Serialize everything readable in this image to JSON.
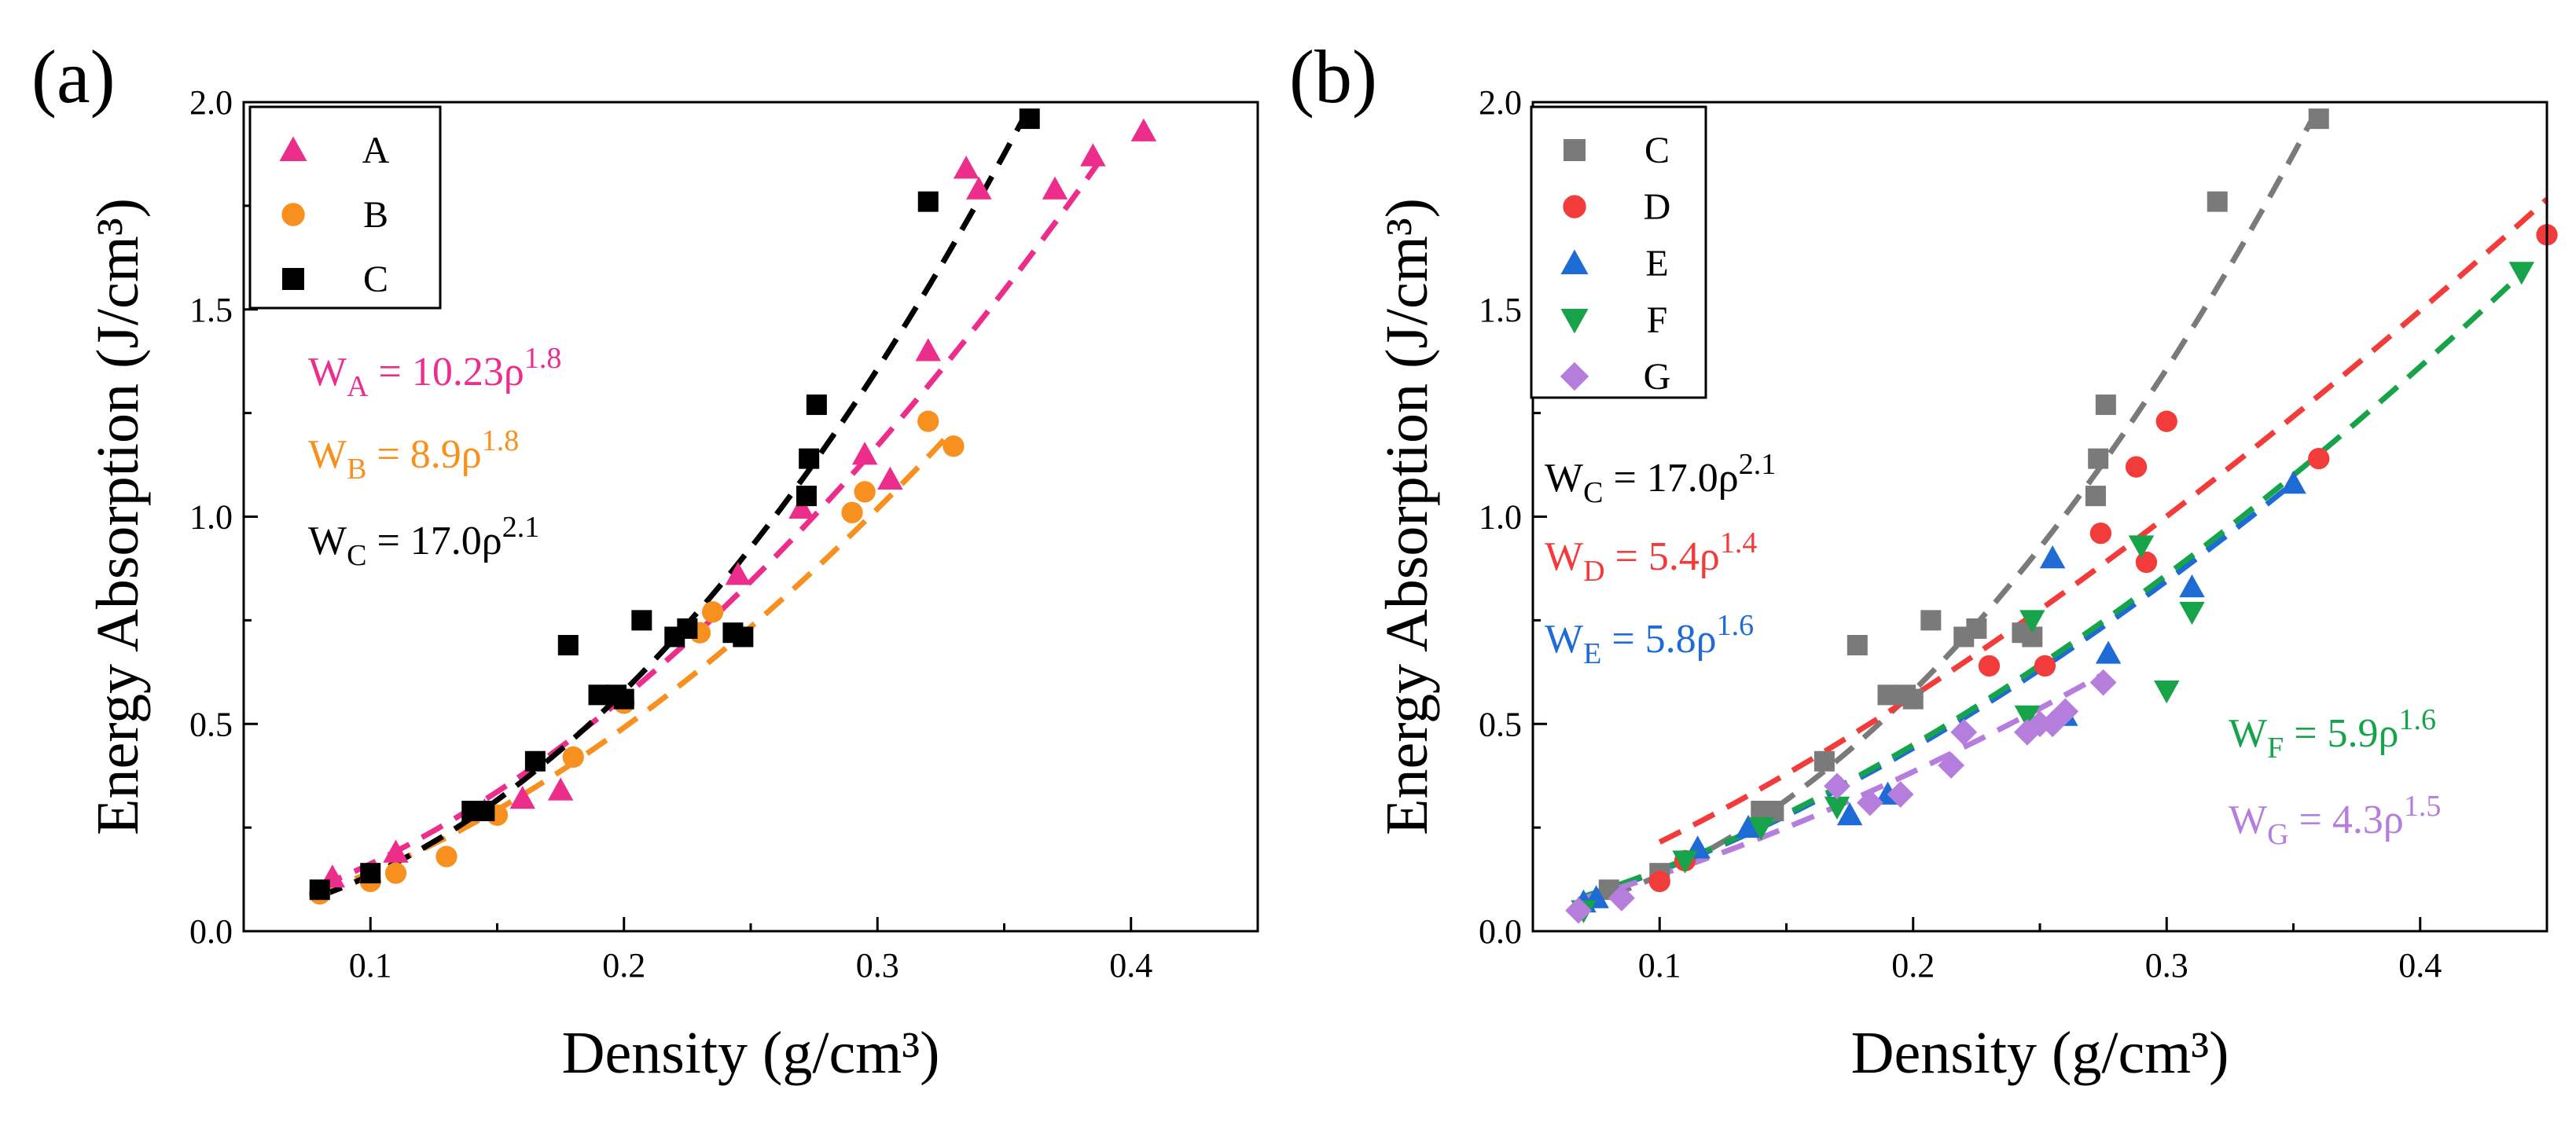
{
  "chart_data": [
    {
      "type": "scatter",
      "panel_label": "(a)",
      "xlabel": "Density (g/cm³)",
      "ylabel": "Energy Absorption (J/cm³)",
      "xlim": [
        0.05,
        0.45
      ],
      "ylim": [
        0.0,
        2.0
      ],
      "xticks": [
        "0.1",
        "0.2",
        "0.3",
        "0.4"
      ],
      "yticks": [
        "0.0",
        "0.5",
        "1.0",
        "1.5",
        "2.0"
      ],
      "legend_position": "top-left",
      "series": [
        {
          "name": "A",
          "marker": "triangle-up",
          "color": "#ec2d8c",
          "x": [
            0.085,
            0.11,
            0.145,
            0.16,
            0.175,
            0.245,
            0.27,
            0.295,
            0.305,
            0.32,
            0.335,
            0.34,
            0.37,
            0.385,
            0.405
          ],
          "y": [
            0.13,
            0.19,
            0.29,
            0.32,
            0.34,
            0.86,
            1.02,
            1.15,
            1.09,
            1.4,
            1.84,
            1.79,
            1.79,
            1.87,
            1.93
          ]
        },
        {
          "name": "B",
          "marker": "circle",
          "color": "#f7901e",
          "x": [
            0.08,
            0.1,
            0.11,
            0.13,
            0.15,
            0.18,
            0.2,
            0.23,
            0.235,
            0.29,
            0.295,
            0.32,
            0.33
          ],
          "y": [
            0.09,
            0.12,
            0.14,
            0.18,
            0.28,
            0.42,
            0.55,
            0.72,
            0.77,
            1.01,
            1.06,
            1.23,
            1.17
          ],
          "exclude_from_legend": false
        },
        {
          "name": "C",
          "marker": "square",
          "color": "#000000",
          "x": [
            0.08,
            0.1,
            0.14,
            0.145,
            0.165,
            0.178,
            0.19,
            0.197,
            0.2,
            0.207,
            0.22,
            0.225,
            0.243,
            0.247,
            0.272,
            0.273,
            0.276,
            0.32,
            0.36
          ],
          "y": [
            0.1,
            0.14,
            0.29,
            0.29,
            0.41,
            0.69,
            0.57,
            0.57,
            0.56,
            0.75,
            0.71,
            0.73,
            0.72,
            0.71,
            1.05,
            1.14,
            1.27,
            1.76,
            1.96
          ]
        }
      ],
      "fits": [
        {
          "name": "A",
          "coef": 10.23,
          "exp": 1.8,
          "x_range": [
            0.08,
            0.39
          ],
          "color": "#ec2d8c"
        },
        {
          "name": "B",
          "coef": 8.9,
          "exp": 1.8,
          "x_range": [
            0.08,
            0.33
          ],
          "color": "#f7901e"
        },
        {
          "name": "C",
          "coef": 17.0,
          "exp": 2.1,
          "x_range": [
            0.08,
            0.36
          ],
          "color": "#000000"
        }
      ],
      "annotations": [
        {
          "prefix": "W",
          "sub": "A",
          "mid": " = 10.23ρ",
          "sup": "1.8",
          "color": "#ec2d8c"
        },
        {
          "prefix": "W",
          "sub": "B",
          "mid": " = 8.9ρ",
          "sup": "1.8",
          "color": "#f7901e"
        },
        {
          "prefix": "W",
          "sub": "C",
          "mid": " = 17.0ρ",
          "sup": "2.1",
          "color": "#000000"
        }
      ]
    },
    {
      "type": "scatter",
      "panel_label": "(b)",
      "xlabel": "Density (g/cm³)",
      "ylabel": "Energy Absorption (J/cm³)",
      "xlim": [
        0.05,
        0.45
      ],
      "ylim": [
        0.0,
        2.0
      ],
      "xticks": [
        "0.1",
        "0.2",
        "0.3",
        "0.4"
      ],
      "yticks": [
        "0.0",
        "0.5",
        "1.0",
        "1.5",
        "2.0"
      ],
      "legend_position": "top-left",
      "series": [
        {
          "name": "C",
          "marker": "square",
          "color": "#7a7a7a",
          "x": [
            0.08,
            0.1,
            0.14,
            0.145,
            0.165,
            0.178,
            0.19,
            0.197,
            0.2,
            0.207,
            0.22,
            0.225,
            0.243,
            0.247,
            0.272,
            0.273,
            0.276,
            0.32,
            0.36
          ],
          "y": [
            0.1,
            0.14,
            0.29,
            0.29,
            0.41,
            0.69,
            0.57,
            0.57,
            0.56,
            0.75,
            0.71,
            0.73,
            0.72,
            0.71,
            1.05,
            1.14,
            1.27,
            1.76,
            1.96
          ]
        },
        {
          "name": "D",
          "marker": "circle",
          "color": "#f23b3b",
          "x": [
            0.1,
            0.11,
            0.23,
            0.252,
            0.274,
            0.288,
            0.292,
            0.3,
            0.36,
            0.45
          ],
          "y": [
            0.12,
            0.17,
            0.64,
            0.64,
            0.96,
            1.12,
            0.89,
            1.23,
            1.14,
            1.68
          ]
        },
        {
          "name": "E",
          "marker": "triangle-up",
          "color": "#1f6bd6",
          "x": [
            0.07,
            0.075,
            0.115,
            0.135,
            0.175,
            0.19,
            0.255,
            0.26,
            0.277,
            0.31,
            0.35
          ],
          "y": [
            0.07,
            0.08,
            0.2,
            0.25,
            0.28,
            0.33,
            0.9,
            0.52,
            0.67,
            0.83,
            1.08
          ]
        },
        {
          "name": "F",
          "marker": "triangle-down",
          "color": "#16a34a",
          "x": [
            0.07,
            0.11,
            0.14,
            0.17,
            0.245,
            0.247,
            0.29,
            0.3,
            0.31,
            0.44
          ],
          "y": [
            0.05,
            0.17,
            0.25,
            0.3,
            0.52,
            0.75,
            0.93,
            0.58,
            0.77,
            1.59
          ]
        },
        {
          "name": "G",
          "marker": "diamond",
          "color": "#b57edc",
          "x": [
            0.068,
            0.085,
            0.17,
            0.183,
            0.195,
            0.215,
            0.22,
            0.245,
            0.25,
            0.255,
            0.26,
            0.275
          ],
          "y": [
            0.05,
            0.08,
            0.35,
            0.31,
            0.33,
            0.4,
            0.48,
            0.48,
            0.5,
            0.5,
            0.53,
            0.6
          ]
        }
      ],
      "fits": [
        {
          "name": "C",
          "coef": 17.0,
          "exp": 2.1,
          "x_range": [
            0.08,
            0.36
          ],
          "color": "#7a7a7a"
        },
        {
          "name": "D",
          "coef": 5.4,
          "exp": 1.4,
          "x_range": [
            0.1,
            0.45
          ],
          "color": "#f23b3b"
        },
        {
          "name": "E",
          "coef": 5.8,
          "exp": 1.6,
          "x_range": [
            0.07,
            0.35
          ],
          "color": "#1f6bd6"
        },
        {
          "name": "F",
          "coef": 5.9,
          "exp": 1.6,
          "x_range": [
            0.07,
            0.44
          ],
          "color": "#16a34a"
        },
        {
          "name": "G",
          "coef": 4.3,
          "exp": 1.5,
          "x_range": [
            0.068,
            0.275
          ],
          "color": "#b57edc"
        }
      ],
      "annotations": [
        {
          "prefix": "W",
          "sub": "C",
          "mid": " = 17.0ρ",
          "sup": "2.1",
          "color": "#000000"
        },
        {
          "prefix": "W",
          "sub": "D",
          "mid": " = 5.4ρ",
          "sup": "1.4",
          "color": "#f23b3b"
        },
        {
          "prefix": "W",
          "sub": "E",
          "mid": " = 5.8ρ",
          "sup": "1.6",
          "color": "#1f6bd6"
        },
        {
          "prefix": "W",
          "sub": "F",
          "mid": " = 5.9ρ",
          "sup": "1.6",
          "color": "#16a34a"
        },
        {
          "prefix": "W",
          "sub": "G",
          "mid": " = 4.3ρ",
          "sup": "1.5",
          "color": "#b57edc"
        }
      ]
    }
  ]
}
